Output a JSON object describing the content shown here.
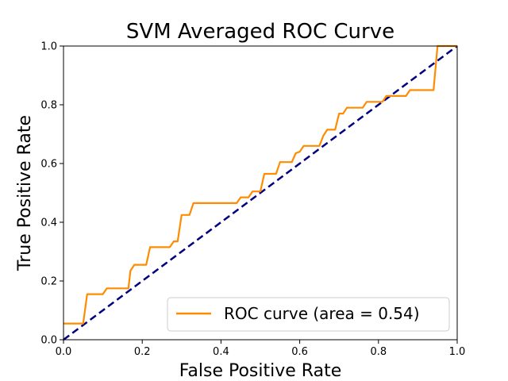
{
  "chart_data": {
    "type": "line",
    "title": "SVM Averaged ROC Curve",
    "xlabel": "False Positive Rate",
    "ylabel": "True Positive Rate",
    "xlim": [
      0.0,
      1.0
    ],
    "ylim": [
      0.0,
      1.0
    ],
    "xticks": [
      "0.0",
      "0.2",
      "0.4",
      "0.6",
      "0.8",
      "1.0"
    ],
    "yticks": [
      "0.0",
      "0.2",
      "0.4",
      "0.6",
      "0.8",
      "1.0"
    ],
    "grid": false,
    "legend_position": "lower-right",
    "series": [
      {
        "name": "ROC curve (area = 0.54)",
        "color": "#ff8c00",
        "style": "solid",
        "x": [
          0.0,
          0.05,
          0.06,
          0.1,
          0.11,
          0.165,
          0.17,
          0.18,
          0.21,
          0.22,
          0.27,
          0.28,
          0.29,
          0.3,
          0.32,
          0.33,
          0.44,
          0.45,
          0.47,
          0.48,
          0.5,
          0.51,
          0.54,
          0.55,
          0.58,
          0.59,
          0.6,
          0.61,
          0.65,
          0.66,
          0.67,
          0.69,
          0.7,
          0.71,
          0.72,
          0.73,
          0.76,
          0.77,
          0.8,
          0.81,
          0.82,
          0.83,
          0.87,
          0.88,
          0.89,
          0.9,
          0.94,
          0.95,
          1.0
        ],
        "y": [
          0.055,
          0.055,
          0.155,
          0.155,
          0.175,
          0.175,
          0.235,
          0.255,
          0.255,
          0.315,
          0.315,
          0.335,
          0.335,
          0.425,
          0.425,
          0.465,
          0.465,
          0.485,
          0.485,
          0.505,
          0.505,
          0.565,
          0.565,
          0.605,
          0.605,
          0.635,
          0.64,
          0.66,
          0.66,
          0.695,
          0.715,
          0.715,
          0.77,
          0.77,
          0.79,
          0.79,
          0.79,
          0.81,
          0.81,
          0.81,
          0.83,
          0.83,
          0.83,
          0.85,
          0.85,
          0.85,
          0.85,
          1.0,
          1.0
        ]
      },
      {
        "name": "",
        "color": "#000080",
        "style": "dashed",
        "x": [
          0.0,
          1.0
        ],
        "y": [
          0.0,
          1.0
        ]
      }
    ]
  }
}
